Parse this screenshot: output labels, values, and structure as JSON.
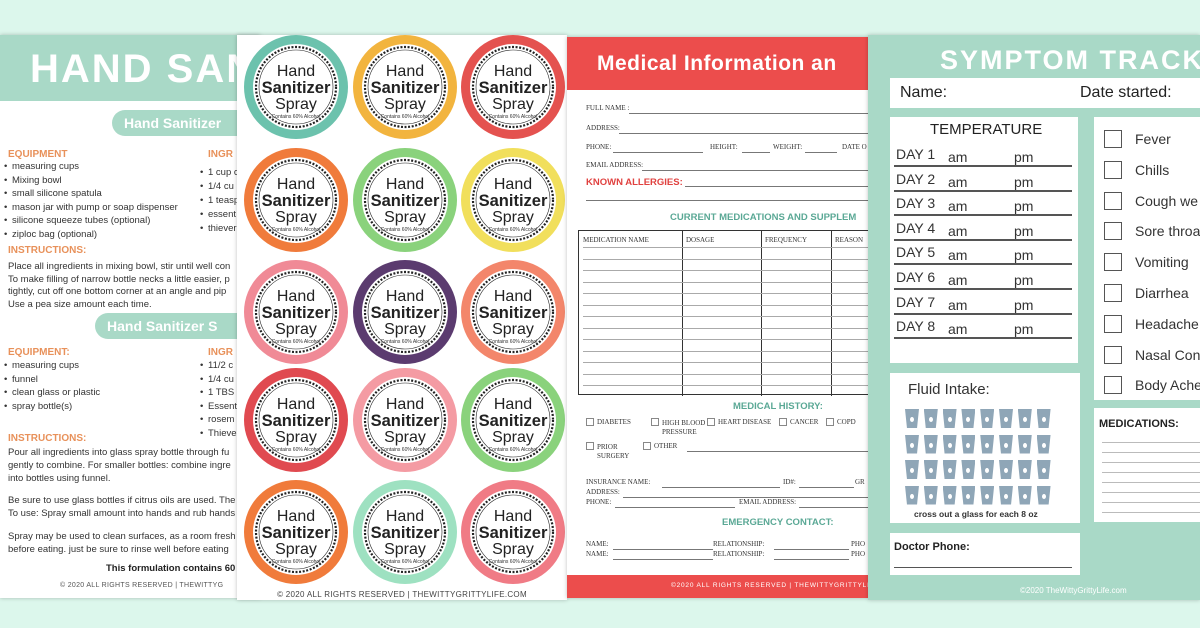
{
  "recipe": {
    "title": "HAND SAN",
    "section1": {
      "heading": "Hand Sanitizer",
      "equipment_title": "EQUIPMENT",
      "equipment": [
        "measuring  cups",
        "Mixing bowl",
        "small silicone spatula",
        "mason jar with pump or soap dispenser",
        "silicone squeeze tubes (optional)",
        "ziploc bag (optional)"
      ],
      "ingredients_title": "INGR",
      "ingredients": [
        "1 cup c",
        "1/4 cu",
        "1 teasp",
        "essent",
        "thiever"
      ],
      "instructions_title": "INSTRUCTIONS:",
      "instructions": [
        "Place  all ingredients in mixing bowl, stir until well con",
        "To make filling of narrow bottle necks a little easier, p",
        "tightly, cut off one bottom corner at an angle and pip",
        "Use a pea size amount each time."
      ]
    },
    "section2": {
      "heading": "Hand Sanitizer S",
      "equipment_title": "EQUIPMENT:",
      "equipment": [
        "measuring cups",
        "funnel",
        "clean glass or plastic",
        "spray bottle(s)"
      ],
      "ingredients_title": "INGR",
      "ingredients": [
        "11/2 c",
        "1/4 cu",
        "1 TBS (",
        "Essent",
        "rosem",
        "Thieve"
      ],
      "instructions_title": "INSTRUCTIONS:",
      "instructions": [
        "Pour all ingredients into glass spray bottle through fu",
        "gently to combine. For smaller  bottles: combine ingre",
        "into bottles using funnel."
      ],
      "notes": [
        "Be sure to use glass bottles if citrus oils are used. The",
        "To use: Spray small amount into hands and rub hands",
        "Spray may be used to clean surfaces, as a room fresh",
        "before eating. just be sure to rinse well before eating"
      ],
      "footnote": "This formulation contains 60"
    },
    "footer": "© 2020 ALL RIGHTS RESERVED  |  THEWITTYG"
  },
  "labels": {
    "line1": "Hand",
    "line2": "Sanitizer",
    "line3": "Spray",
    "line4": "Contains  60% Alcohol",
    "colors": [
      "#6cc2ad",
      "#f2b43e",
      "#e4524f",
      "#f07b3b",
      "#8ad27c",
      "#f1df5c",
      "#f08a96",
      "#5b3b6f",
      "#f3866b",
      "#e04a50",
      "#f49ba3",
      "#8ad27c",
      "#f07b3b",
      "#9ee1c1",
      "#f07b85"
    ],
    "footer": "© 2020 ALL RIGHTS RESERVED  |  THEWITTYGRITTYLIFE.COM"
  },
  "medical": {
    "title": "Medical Information an",
    "full_name": "Full name :",
    "address": "Address:",
    "phone": "Phone:",
    "height": "Height:",
    "weight": "Weight:",
    "date": "Date o",
    "email": "Email address:",
    "allergies": "KNOWN ALLERGIES:",
    "meds_title": "CURRENT MEDICATIONS AND SUPPLEM",
    "columns": [
      "MEDICATION NAME",
      "DOSAGE",
      "FREQUENCY",
      "REASON"
    ],
    "history_title": "MEDICAL HISTORY:",
    "history": [
      "DIABETES",
      "HIGH BLOOD PRESSURE",
      "HEART DISEASE",
      "CANCER",
      "COPD",
      "PRIOR SURGERY",
      "OTHER"
    ],
    "insurance": "INSURANCE  NAME:",
    "id": "ID#:",
    "group": "GR",
    "ins_address": "ADDRESS:",
    "ins_phone": "PHONE:",
    "ins_email": "Email Address:",
    "emergency_title": "EMERGENCY CONTACT:",
    "contacts": [
      {
        "name": "NAME:",
        "relationship": "RELATIONSHIP:",
        "phone": "PHO"
      },
      {
        "name": "NAME:",
        "relationship": "RELATIONSHIP:",
        "phone": "PHO"
      }
    ],
    "footer": "©2020 ALL RIGHTS RESERVED  |  THEWITTYGRITTYLIFE.COM"
  },
  "tracker": {
    "title": "SYMPTOM TRACK",
    "name": "Name:",
    "date_started": "Date started:",
    "temperature": "TEMPERATURE",
    "days": [
      "DAY 1",
      "DAY 2",
      "DAY 3",
      "DAY 4",
      "DAY 5",
      "DAY 6",
      "DAY 7",
      "DAY 8"
    ],
    "am": "am",
    "pm": "pm",
    "symptoms": [
      "Fever",
      "Chills",
      "Cough  we",
      "Sore throa",
      "Vomiting",
      "Diarrhea",
      "Headache",
      "Nasal Con",
      "Body Ache"
    ],
    "fluid": "Fluid Intake:",
    "fluid_note": "cross out a glass for each 8 oz",
    "doctor": "Doctor Phone:",
    "medications": "MEDICATIONS:",
    "footer": "©2020 TheWittyGrittyLife.com"
  }
}
